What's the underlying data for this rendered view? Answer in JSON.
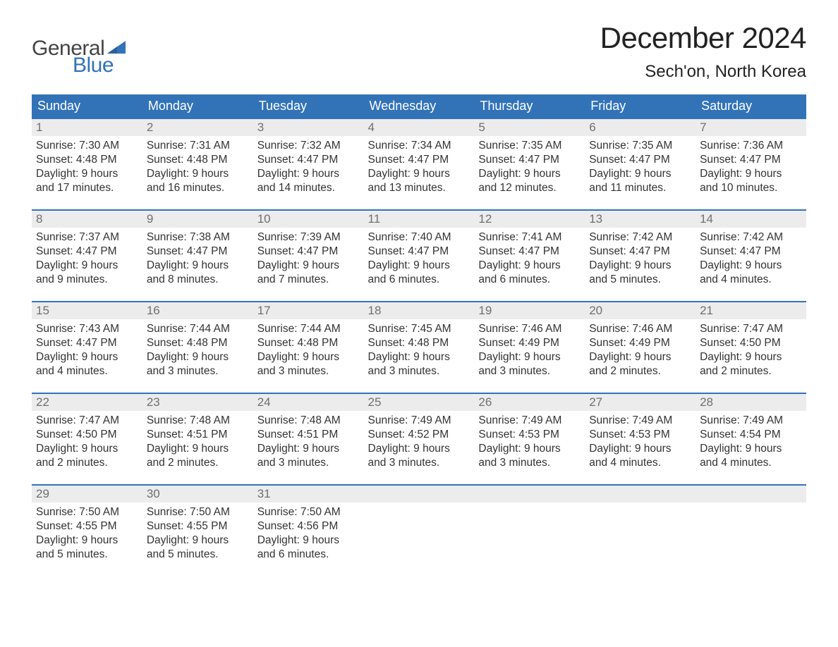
{
  "logo": {
    "text_general": "General",
    "text_blue": "Blue",
    "flag_color": "#3273b8"
  },
  "title": {
    "month": "December 2024",
    "location": "Sech'on, North Korea"
  },
  "weekdays": [
    "Sunday",
    "Monday",
    "Tuesday",
    "Wednesday",
    "Thursday",
    "Friday",
    "Saturday"
  ],
  "styling": {
    "header_bg": "#3273b8",
    "header_text": "#ffffff",
    "daynum_bg": "#ececec",
    "daynum_text": "#6f6f6f",
    "row_border": "#3273b8",
    "body_text": "#333333",
    "background": "#ffffff",
    "month_fontsize": 42,
    "location_fontsize": 24,
    "weekday_fontsize": 18,
    "daynum_fontsize": 17,
    "content_fontsize": 15.5
  },
  "weeks": [
    [
      {
        "day": "1",
        "sunrise": "Sunrise: 7:30 AM",
        "sunset": "Sunset: 4:48 PM",
        "daylight1": "Daylight: 9 hours",
        "daylight2": "and 17 minutes."
      },
      {
        "day": "2",
        "sunrise": "Sunrise: 7:31 AM",
        "sunset": "Sunset: 4:48 PM",
        "daylight1": "Daylight: 9 hours",
        "daylight2": "and 16 minutes."
      },
      {
        "day": "3",
        "sunrise": "Sunrise: 7:32 AM",
        "sunset": "Sunset: 4:47 PM",
        "daylight1": "Daylight: 9 hours",
        "daylight2": "and 14 minutes."
      },
      {
        "day": "4",
        "sunrise": "Sunrise: 7:34 AM",
        "sunset": "Sunset: 4:47 PM",
        "daylight1": "Daylight: 9 hours",
        "daylight2": "and 13 minutes."
      },
      {
        "day": "5",
        "sunrise": "Sunrise: 7:35 AM",
        "sunset": "Sunset: 4:47 PM",
        "daylight1": "Daylight: 9 hours",
        "daylight2": "and 12 minutes."
      },
      {
        "day": "6",
        "sunrise": "Sunrise: 7:35 AM",
        "sunset": "Sunset: 4:47 PM",
        "daylight1": "Daylight: 9 hours",
        "daylight2": "and 11 minutes."
      },
      {
        "day": "7",
        "sunrise": "Sunrise: 7:36 AM",
        "sunset": "Sunset: 4:47 PM",
        "daylight1": "Daylight: 9 hours",
        "daylight2": "and 10 minutes."
      }
    ],
    [
      {
        "day": "8",
        "sunrise": "Sunrise: 7:37 AM",
        "sunset": "Sunset: 4:47 PM",
        "daylight1": "Daylight: 9 hours",
        "daylight2": "and 9 minutes."
      },
      {
        "day": "9",
        "sunrise": "Sunrise: 7:38 AM",
        "sunset": "Sunset: 4:47 PM",
        "daylight1": "Daylight: 9 hours",
        "daylight2": "and 8 minutes."
      },
      {
        "day": "10",
        "sunrise": "Sunrise: 7:39 AM",
        "sunset": "Sunset: 4:47 PM",
        "daylight1": "Daylight: 9 hours",
        "daylight2": "and 7 minutes."
      },
      {
        "day": "11",
        "sunrise": "Sunrise: 7:40 AM",
        "sunset": "Sunset: 4:47 PM",
        "daylight1": "Daylight: 9 hours",
        "daylight2": "and 6 minutes."
      },
      {
        "day": "12",
        "sunrise": "Sunrise: 7:41 AM",
        "sunset": "Sunset: 4:47 PM",
        "daylight1": "Daylight: 9 hours",
        "daylight2": "and 6 minutes."
      },
      {
        "day": "13",
        "sunrise": "Sunrise: 7:42 AM",
        "sunset": "Sunset: 4:47 PM",
        "daylight1": "Daylight: 9 hours",
        "daylight2": "and 5 minutes."
      },
      {
        "day": "14",
        "sunrise": "Sunrise: 7:42 AM",
        "sunset": "Sunset: 4:47 PM",
        "daylight1": "Daylight: 9 hours",
        "daylight2": "and 4 minutes."
      }
    ],
    [
      {
        "day": "15",
        "sunrise": "Sunrise: 7:43 AM",
        "sunset": "Sunset: 4:47 PM",
        "daylight1": "Daylight: 9 hours",
        "daylight2": "and 4 minutes."
      },
      {
        "day": "16",
        "sunrise": "Sunrise: 7:44 AM",
        "sunset": "Sunset: 4:48 PM",
        "daylight1": "Daylight: 9 hours",
        "daylight2": "and 3 minutes."
      },
      {
        "day": "17",
        "sunrise": "Sunrise: 7:44 AM",
        "sunset": "Sunset: 4:48 PM",
        "daylight1": "Daylight: 9 hours",
        "daylight2": "and 3 minutes."
      },
      {
        "day": "18",
        "sunrise": "Sunrise: 7:45 AM",
        "sunset": "Sunset: 4:48 PM",
        "daylight1": "Daylight: 9 hours",
        "daylight2": "and 3 minutes."
      },
      {
        "day": "19",
        "sunrise": "Sunrise: 7:46 AM",
        "sunset": "Sunset: 4:49 PM",
        "daylight1": "Daylight: 9 hours",
        "daylight2": "and 3 minutes."
      },
      {
        "day": "20",
        "sunrise": "Sunrise: 7:46 AM",
        "sunset": "Sunset: 4:49 PM",
        "daylight1": "Daylight: 9 hours",
        "daylight2": "and 2 minutes."
      },
      {
        "day": "21",
        "sunrise": "Sunrise: 7:47 AM",
        "sunset": "Sunset: 4:50 PM",
        "daylight1": "Daylight: 9 hours",
        "daylight2": "and 2 minutes."
      }
    ],
    [
      {
        "day": "22",
        "sunrise": "Sunrise: 7:47 AM",
        "sunset": "Sunset: 4:50 PM",
        "daylight1": "Daylight: 9 hours",
        "daylight2": "and 2 minutes."
      },
      {
        "day": "23",
        "sunrise": "Sunrise: 7:48 AM",
        "sunset": "Sunset: 4:51 PM",
        "daylight1": "Daylight: 9 hours",
        "daylight2": "and 2 minutes."
      },
      {
        "day": "24",
        "sunrise": "Sunrise: 7:48 AM",
        "sunset": "Sunset: 4:51 PM",
        "daylight1": "Daylight: 9 hours",
        "daylight2": "and 3 minutes."
      },
      {
        "day": "25",
        "sunrise": "Sunrise: 7:49 AM",
        "sunset": "Sunset: 4:52 PM",
        "daylight1": "Daylight: 9 hours",
        "daylight2": "and 3 minutes."
      },
      {
        "day": "26",
        "sunrise": "Sunrise: 7:49 AM",
        "sunset": "Sunset: 4:53 PM",
        "daylight1": "Daylight: 9 hours",
        "daylight2": "and 3 minutes."
      },
      {
        "day": "27",
        "sunrise": "Sunrise: 7:49 AM",
        "sunset": "Sunset: 4:53 PM",
        "daylight1": "Daylight: 9 hours",
        "daylight2": "and 4 minutes."
      },
      {
        "day": "28",
        "sunrise": "Sunrise: 7:49 AM",
        "sunset": "Sunset: 4:54 PM",
        "daylight1": "Daylight: 9 hours",
        "daylight2": "and 4 minutes."
      }
    ],
    [
      {
        "day": "29",
        "sunrise": "Sunrise: 7:50 AM",
        "sunset": "Sunset: 4:55 PM",
        "daylight1": "Daylight: 9 hours",
        "daylight2": "and 5 minutes."
      },
      {
        "day": "30",
        "sunrise": "Sunrise: 7:50 AM",
        "sunset": "Sunset: 4:55 PM",
        "daylight1": "Daylight: 9 hours",
        "daylight2": "and 5 minutes."
      },
      {
        "day": "31",
        "sunrise": "Sunrise: 7:50 AM",
        "sunset": "Sunset: 4:56 PM",
        "daylight1": "Daylight: 9 hours",
        "daylight2": "and 6 minutes."
      },
      null,
      null,
      null,
      null
    ]
  ]
}
